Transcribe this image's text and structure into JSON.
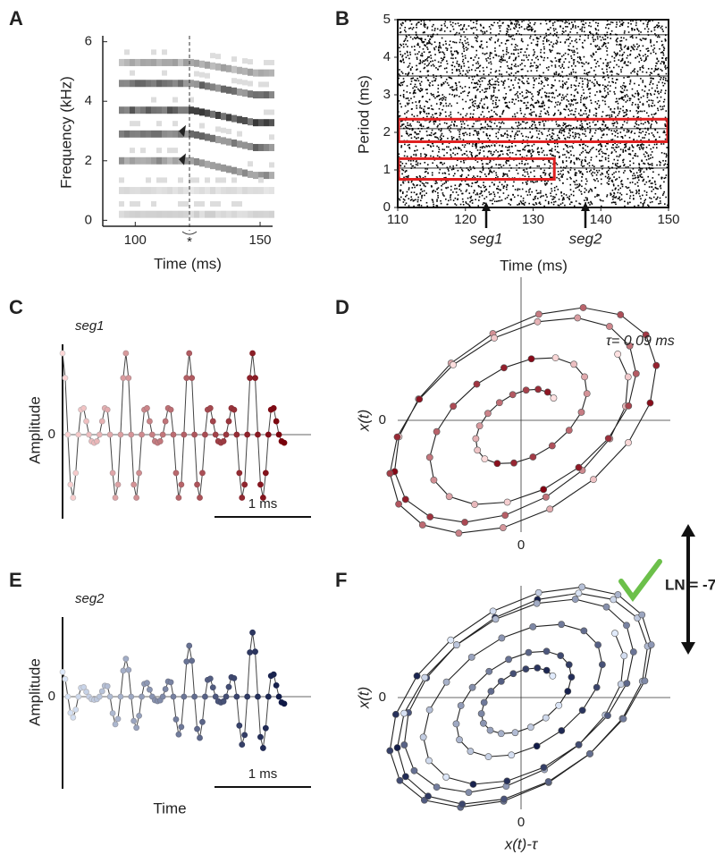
{
  "panels": [
    {
      "label": "A",
      "y_label": "Frequency (kHz)",
      "x_label": "Time (ms)",
      "xlim": [
        87,
        155
      ],
      "ylim": [
        -0.2,
        6.2
      ],
      "xticks": [
        100,
        150
      ],
      "yticks": [
        0,
        2,
        4,
        6
      ],
      "marker": "*"
    },
    {
      "label": "B",
      "y_label": "Period (ms)",
      "x_label": "Time (ms)",
      "xlim": [
        110,
        150
      ],
      "ylim": [
        0,
        5
      ],
      "xticks": [
        110,
        120,
        130,
        140,
        150
      ],
      "yticks": [
        0,
        1,
        2,
        3,
        4,
        5
      ],
      "arrows": [
        "seg1",
        "seg2"
      ]
    },
    {
      "label": "C",
      "segment": "seg1",
      "y_label": "Amplitude",
      "zero": "0",
      "scale_bar": "1 ms"
    },
    {
      "label": "D",
      "tau": "τ= 0.09 ms",
      "y_label": "x(t)",
      "x_zero": "0",
      "y_zero": "0"
    },
    {
      "label": "E",
      "segment": "seg2",
      "y_label": "Amplitude",
      "zero": "0",
      "scale_bar": "1 ms",
      "x_label": "Time"
    },
    {
      "label": "F",
      "y_label": "x(t)",
      "x_label": "x(t)-τ",
      "x_zero": "0",
      "y_zero": "0"
    }
  ],
  "result": "LN = -7"
}
